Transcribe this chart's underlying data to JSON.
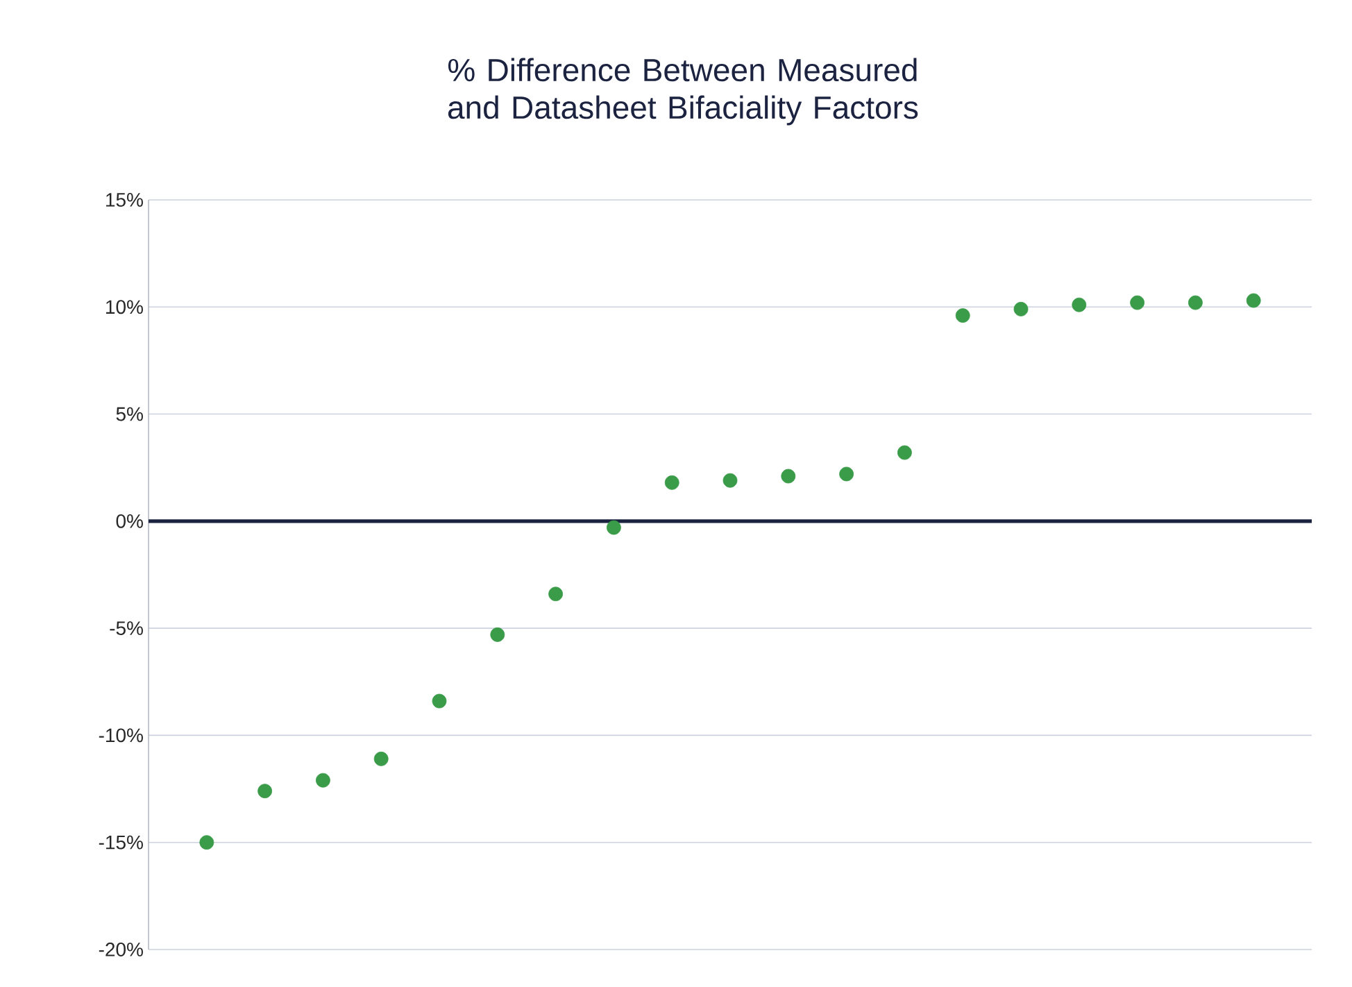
{
  "chart_data": {
    "type": "scatter",
    "title": "% Difference Between Measured and Datasheet Bifaciality Factors",
    "categories": [
      null,
      null,
      null,
      null,
      null,
      null,
      null,
      null,
      null,
      null,
      null,
      null,
      null,
      null,
      null,
      null,
      null,
      null,
      null
    ],
    "values": [
      -15.0,
      -12.6,
      -12.1,
      -11.1,
      -8.4,
      -5.3,
      -3.4,
      -0.3,
      1.8,
      1.9,
      2.1,
      2.2,
      3.2,
      9.6,
      9.9,
      10.1,
      10.2,
      10.2,
      10.3
    ],
    "color": "#3a9b48",
    "marker": "circle",
    "ylim": [
      -20,
      15
    ],
    "yticks": [
      {
        "value": -20,
        "label": "-20%"
      },
      {
        "value": -15,
        "label": "-15%"
      },
      {
        "value": -10,
        "label": "-10%"
      },
      {
        "value": -5,
        "label": "-5%"
      },
      {
        "value": 0,
        "label": "0%"
      },
      {
        "value": 5,
        "label": "5%"
      },
      {
        "value": 10,
        "label": "10%"
      },
      {
        "value": 15,
        "label": "15%"
      }
    ],
    "grid": "y",
    "tick_labels": "y",
    "ref_lines": [
      {
        "axis": "y",
        "value": 0,
        "color": "#1b2340"
      }
    ]
  }
}
